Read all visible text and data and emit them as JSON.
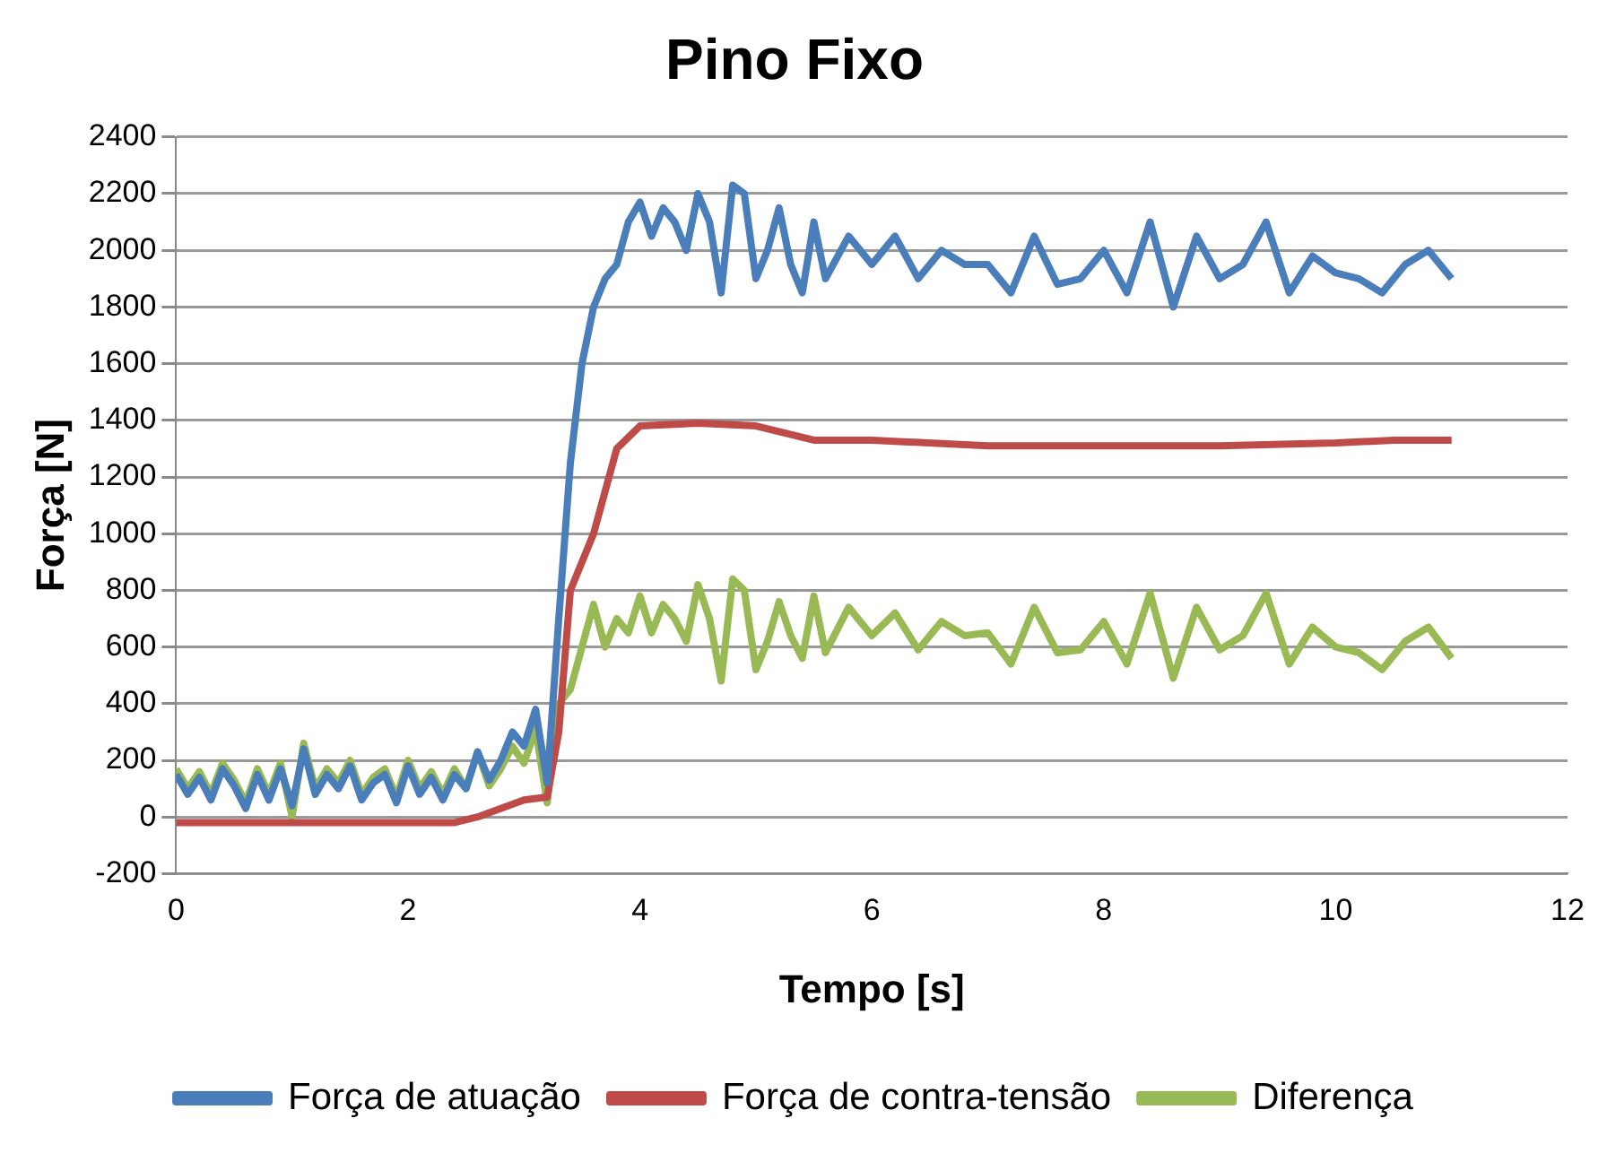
{
  "chart_data": {
    "type": "line",
    "title": "Pino Fixo",
    "xlabel": "Tempo [s]",
    "ylabel": "Força [N]",
    "xlim": [
      0,
      12
    ],
    "xticks": [
      0,
      2,
      4,
      6,
      8,
      10,
      12
    ],
    "ylim": [
      -200,
      2400
    ],
    "yticks": [
      -200,
      0,
      200,
      400,
      600,
      800,
      1000,
      1200,
      1400,
      1600,
      1800,
      2000,
      2200,
      2400
    ],
    "grid": "y",
    "legend": "bottom",
    "marker": "none",
    "line_style": "solid",
    "series": [
      {
        "name": "Força de atuação",
        "color": "#4a7ebb",
        "x": [
          0,
          0.1,
          0.2,
          0.3,
          0.4,
          0.5,
          0.6,
          0.7,
          0.8,
          0.9,
          1.0,
          1.1,
          1.2,
          1.3,
          1.4,
          1.5,
          1.6,
          1.7,
          1.8,
          1.9,
          2.0,
          2.1,
          2.2,
          2.3,
          2.4,
          2.5,
          2.6,
          2.7,
          2.8,
          2.9,
          3.0,
          3.1,
          3.2,
          3.3,
          3.4,
          3.5,
          3.6,
          3.7,
          3.8,
          3.9,
          4.0,
          4.1,
          4.2,
          4.3,
          4.4,
          4.5,
          4.6,
          4.7,
          4.8,
          4.9,
          5.0,
          5.1,
          5.2,
          5.3,
          5.4,
          5.5,
          5.6,
          5.8,
          6.0,
          6.2,
          6.4,
          6.6,
          6.8,
          7.0,
          7.2,
          7.4,
          7.6,
          7.8,
          8.0,
          8.2,
          8.4,
          8.6,
          8.8,
          9.0,
          9.2,
          9.4,
          9.6,
          9.8,
          10.0,
          10.2,
          10.4,
          10.6,
          10.8,
          11.0
        ],
        "values": [
          150,
          80,
          140,
          60,
          170,
          110,
          30,
          150,
          60,
          170,
          40,
          240,
          80,
          150,
          100,
          180,
          60,
          120,
          150,
          50,
          180,
          80,
          140,
          60,
          150,
          100,
          230,
          130,
          200,
          300,
          250,
          380,
          120,
          700,
          1250,
          1600,
          1800,
          1900,
          1950,
          2100,
          2170,
          2050,
          2150,
          2100,
          2000,
          2200,
          2100,
          1850,
          2230,
          2200,
          1900,
          2000,
          2150,
          1950,
          1850,
          2100,
          1900,
          2050,
          1950,
          2050,
          1900,
          2000,
          1950,
          1950,
          1850,
          2050,
          1880,
          1900,
          2000,
          1850,
          2100,
          1800,
          2050,
          1900,
          1950,
          2100,
          1850,
          1980,
          1920,
          1900,
          1850,
          1950,
          2000,
          1900
        ]
      },
      {
        "name": "Força de contra-tensão",
        "color": "#be4b48",
        "x": [
          0,
          2.4,
          2.6,
          2.8,
          3.0,
          3.2,
          3.3,
          3.4,
          3.6,
          3.8,
          4.0,
          4.5,
          5.0,
          5.5,
          6.0,
          7.0,
          8.0,
          9.0,
          10.0,
          10.5,
          11.0
        ],
        "values": [
          -20,
          -20,
          0,
          30,
          60,
          70,
          300,
          800,
          1000,
          1300,
          1380,
          1390,
          1380,
          1330,
          1330,
          1310,
          1310,
          1310,
          1320,
          1330,
          1330
        ]
      },
      {
        "name": "Diferença",
        "color": "#98b954",
        "x": [
          0,
          0.1,
          0.2,
          0.3,
          0.4,
          0.5,
          0.6,
          0.7,
          0.8,
          0.9,
          1.0,
          1.1,
          1.2,
          1.3,
          1.4,
          1.5,
          1.6,
          1.7,
          1.8,
          1.9,
          2.0,
          2.1,
          2.2,
          2.3,
          2.4,
          2.5,
          2.6,
          2.7,
          2.8,
          2.9,
          3.0,
          3.1,
          3.2,
          3.3,
          3.4,
          3.5,
          3.6,
          3.7,
          3.8,
          3.9,
          4.0,
          4.1,
          4.2,
          4.3,
          4.4,
          4.5,
          4.6,
          4.7,
          4.8,
          4.9,
          5.0,
          5.1,
          5.2,
          5.3,
          5.4,
          5.5,
          5.6,
          5.8,
          6.0,
          6.2,
          6.4,
          6.6,
          6.8,
          7.0,
          7.2,
          7.4,
          7.6,
          7.8,
          8.0,
          8.2,
          8.4,
          8.6,
          8.8,
          9.0,
          9.2,
          9.4,
          9.6,
          9.8,
          10.0,
          10.2,
          10.4,
          10.6,
          10.8,
          11.0
        ],
        "values": [
          170,
          100,
          160,
          80,
          190,
          130,
          50,
          170,
          80,
          190,
          0,
          260,
          100,
          170,
          120,
          200,
          80,
          140,
          170,
          70,
          200,
          100,
          160,
          80,
          170,
          100,
          230,
          110,
          170,
          250,
          190,
          310,
          50,
          400,
          450,
          600,
          750,
          600,
          700,
          650,
          780,
          650,
          750,
          700,
          620,
          820,
          700,
          480,
          840,
          800,
          520,
          620,
          760,
          640,
          560,
          780,
          580,
          740,
          640,
          720,
          590,
          690,
          640,
          650,
          540,
          740,
          580,
          590,
          690,
          540,
          790,
          490,
          740,
          590,
          640,
          790,
          540,
          670,
          600,
          580,
          520,
          620,
          670,
          560
        ]
      }
    ]
  }
}
